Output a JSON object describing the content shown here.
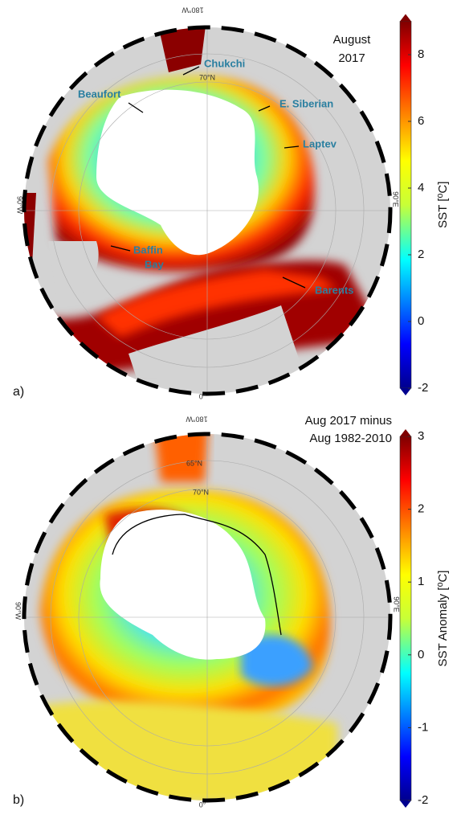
{
  "panels": [
    {
      "label": "a)",
      "title": [
        "August",
        "2017"
      ],
      "places": [
        "Chukchi",
        "Beaufort",
        "E. Siberian",
        "Laptev",
        "Baffin",
        "Bay",
        "Barents"
      ],
      "grid_labels": [
        "180°W",
        "90°W",
        "90°E",
        "0°",
        "70°N"
      ],
      "colorbar": {
        "label": "SST [⁰C]",
        "lim": [
          -2,
          9
        ],
        "ticks": [
          -2,
          0,
          2,
          4,
          6,
          8
        ]
      }
    },
    {
      "label": "b)",
      "title": [
        "Aug 2017 minus",
        "Aug 1982-2010"
      ],
      "places": [],
      "grid_labels": [
        "180°W",
        "90°W",
        "90°E",
        "0°",
        "65°N",
        "70°N"
      ],
      "colorbar": {
        "label": "SST Anomaly [⁰C]",
        "lim": [
          -2,
          3
        ],
        "ticks": [
          -2,
          -1,
          0,
          1,
          2,
          3
        ]
      }
    }
  ]
}
